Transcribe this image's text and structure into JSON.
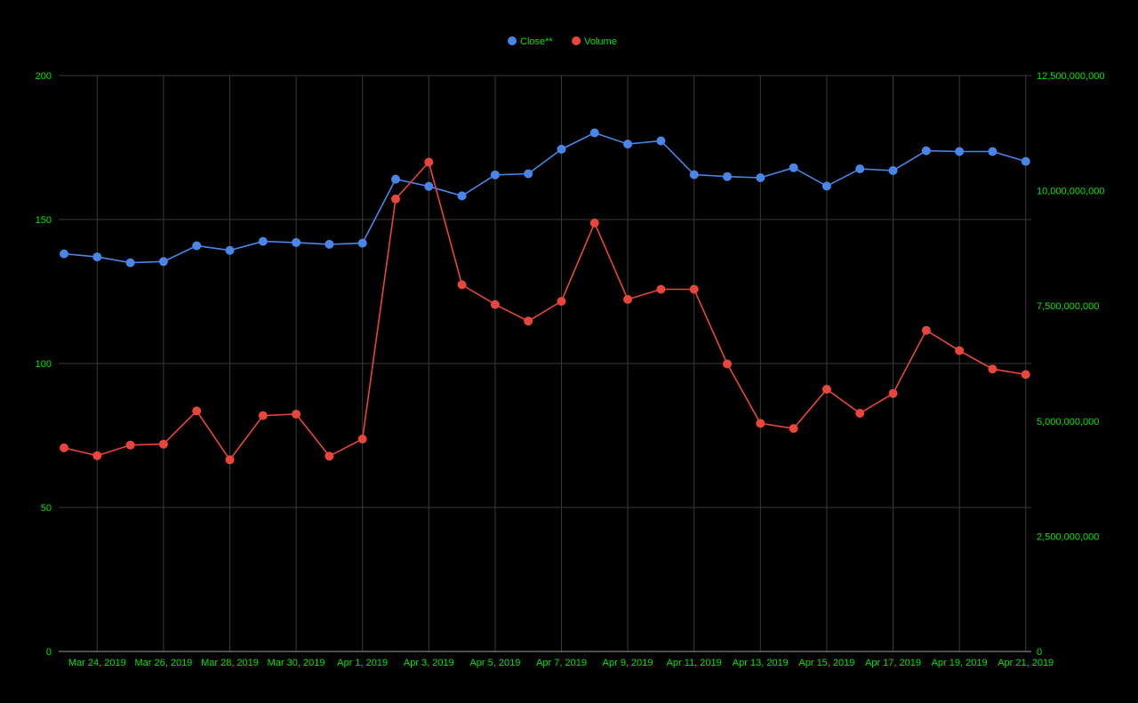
{
  "chart_data": {
    "type": "line",
    "title": "",
    "xlabel": "",
    "ylabel": "",
    "x": [
      "2019-03-23",
      "2019-03-24",
      "2019-03-25",
      "2019-03-26",
      "2019-03-27",
      "2019-03-28",
      "2019-03-29",
      "2019-03-30",
      "2019-03-31",
      "2019-04-01",
      "2019-04-02",
      "2019-04-03",
      "2019-04-04",
      "2019-04-05",
      "2019-04-06",
      "2019-04-07",
      "2019-04-08",
      "2019-04-09",
      "2019-04-10",
      "2019-04-11",
      "2019-04-12",
      "2019-04-13",
      "2019-04-14",
      "2019-04-15",
      "2019-04-16",
      "2019-04-17",
      "2019-04-18",
      "2019-04-19",
      "2019-04-20",
      "2019-04-21"
    ],
    "x_tick_labels": [
      "Mar 24, 2019",
      "Mar 26, 2019",
      "Mar 28, 2019",
      "Mar 30, 2019",
      "Apr 1, 2019",
      "Apr 3, 2019",
      "Apr 5, 2019",
      "Apr 7, 2019",
      "Apr 9, 2019",
      "Apr 11, 2019",
      "Apr 13, 2019",
      "Apr 15, 2019",
      "Apr 17, 2019",
      "Apr 19, 2019",
      "Apr 21, 2019"
    ],
    "y_left": {
      "range": [
        0,
        200
      ],
      "ticks": [
        "0",
        "50",
        "100",
        "150",
        "200"
      ]
    },
    "y_right": {
      "range": [
        0,
        12500000000
      ],
      "ticks": [
        "0",
        "2,500,000,000",
        "5,000,000,000",
        "7,500,000,000",
        "10,000,000,000",
        "12,500,000,000"
      ]
    },
    "grid": true,
    "legend_position": "top-center",
    "series": [
      {
        "name": "Close**",
        "color": "#4a86e8",
        "axis": "left",
        "values": [
          138.1,
          137.0,
          135.0,
          135.4,
          140.9,
          139.3,
          142.4,
          142.0,
          141.4,
          141.8,
          164.0,
          161.5,
          158.2,
          165.5,
          165.9,
          174.4,
          180.1,
          176.2,
          177.3,
          165.6,
          164.9,
          164.5,
          168.0,
          161.6,
          167.6,
          167.0,
          173.9,
          173.6,
          173.6,
          170.2
        ]
      },
      {
        "name": "Volume",
        "color": "#e8453c",
        "axis": "right",
        "values": [
          4420000000,
          4250000000,
          4480000000,
          4500000000,
          5220000000,
          4160000000,
          5120000000,
          5150000000,
          4240000000,
          4610000000,
          9820000000,
          10620000000,
          7960000000,
          7530000000,
          7170000000,
          7600000000,
          9300000000,
          7640000000,
          7860000000,
          7860000000,
          6240000000,
          4950000000,
          4840000000,
          5690000000,
          5170000000,
          5600000000,
          6970000000,
          6530000000,
          6130000000,
          6010000000
        ]
      }
    ]
  }
}
